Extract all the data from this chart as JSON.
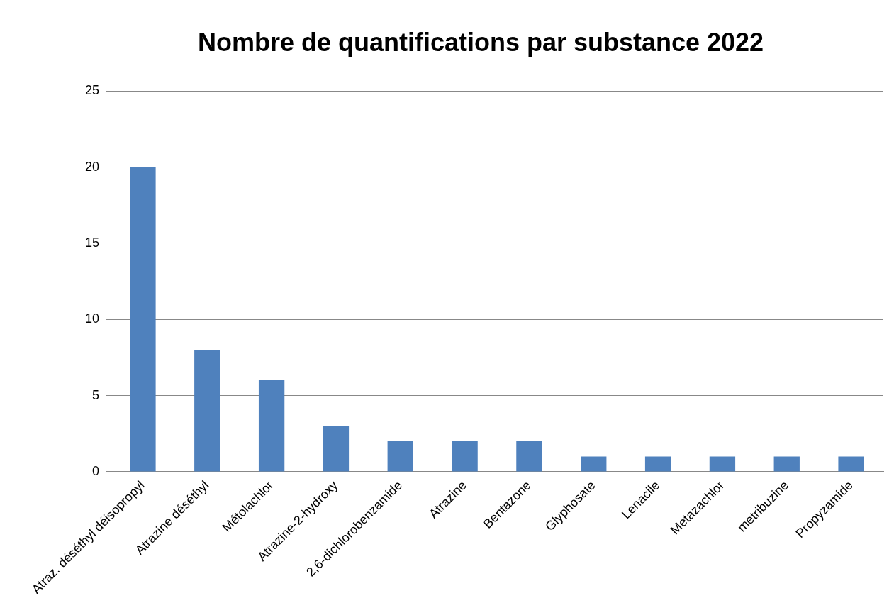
{
  "chart_data": {
    "type": "bar",
    "title": "Nombre de quantifications par substance 2022",
    "categories": [
      "Atraz. déséthyl déisopropyl",
      "Atrazine déséthyl",
      "Métolachlor",
      "Atrazine-2-hydroxy",
      "2,6-dichlorobenzamide",
      "Atrazine",
      "Bentazone",
      "Glyphosate",
      "Lenacile",
      "Metazachlor",
      "metribuzine",
      "Propyzamide"
    ],
    "values": [
      20,
      8,
      6,
      3,
      2,
      2,
      2,
      1,
      1,
      1,
      1,
      1
    ],
    "color": "#4f81bd",
    "ylim": [
      0,
      25
    ],
    "yticks": [
      0,
      5,
      10,
      15,
      20,
      25
    ],
    "grid": "y",
    "legend": false
  }
}
